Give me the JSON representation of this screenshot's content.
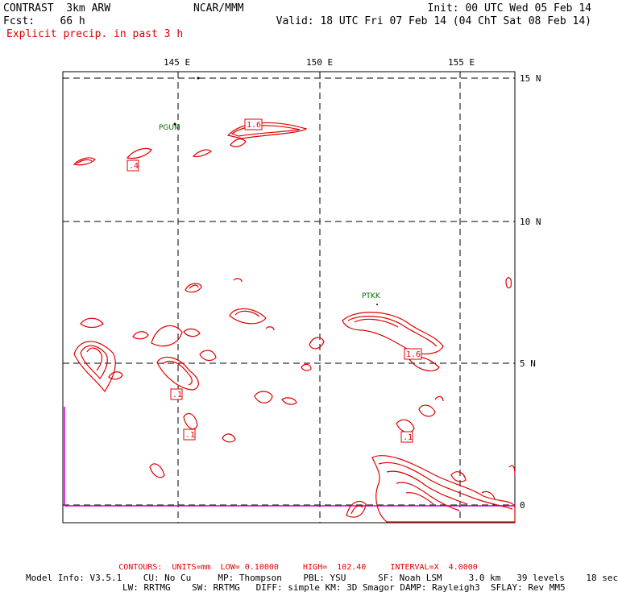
{
  "header": {
    "title": "CONTRAST  3km ARW",
    "fcst_label": "Fcst:",
    "fcst_value": "66 h",
    "product": "Explicit precip. in past 3 h",
    "center": "NCAR/MMM",
    "init": "Init: 00 UTC Wed 05 Feb 14",
    "valid": "Valid: 18 UTC Fri 07 Feb 14 (04 ChT Sat 08 Feb 14)"
  },
  "axes": {
    "lon_labels": [
      "145 E",
      "150 E",
      "155 E"
    ],
    "lat_labels": [
      "15 N",
      "10 N",
      "5 N",
      "0"
    ]
  },
  "stations": [
    "PGUM",
    "PTKK"
  ],
  "contour_labels": [
    "1.6",
    ".4",
    "1.6",
    ".1",
    ".1",
    ".1"
  ],
  "footer": {
    "contours": "CONTOURS:  UNITS=mm  LOW= 0.10000     HIGH=  102.40     INTERVAL=X  4.0000",
    "model_line1": "Model Info: V3.5.1    CU: No Cu     MP: Thompson    PBL: YSU      SF: Noah LSM     3.0 km   39 levels    18 sec",
    "model_line2": "LW: RRTMG    SW: RRTMG   DIFF: simple KM: 3D Smagor DAMP: Rayleigh3  SFLAY: Rev MM5"
  },
  "colors": {
    "contour": "#e00000",
    "station": "#006600",
    "boundary": "#cc00cc",
    "grid": "#000000"
  }
}
